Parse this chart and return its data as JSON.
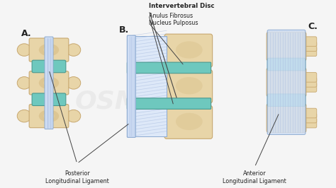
{
  "background_color": "#f5f5f5",
  "bone_color": "#e8d5a8",
  "bone_edge": "#c8a870",
  "bone_inner": "#d4b880",
  "disc_color": "#6ec8be",
  "disc_edge": "#4a9990",
  "lig_color": "#d0dff5",
  "lig_stripe": "#a8bce0",
  "lig_edge": "#8aa8d0",
  "label_A": "A.",
  "label_B": "B.",
  "label_C": "C.",
  "text_intervertebral": "Intervertebral Disc",
  "text_anulus": "Anulus Fibrosus",
  "text_nucleus": "Nucleus Pulposus",
  "text_posterior": "Posterior\nLongitudinal Ligament",
  "text_anterior": "Anterior\nLongitudinal Ligament",
  "font_color": "#222222",
  "arrow_color": "#444444"
}
